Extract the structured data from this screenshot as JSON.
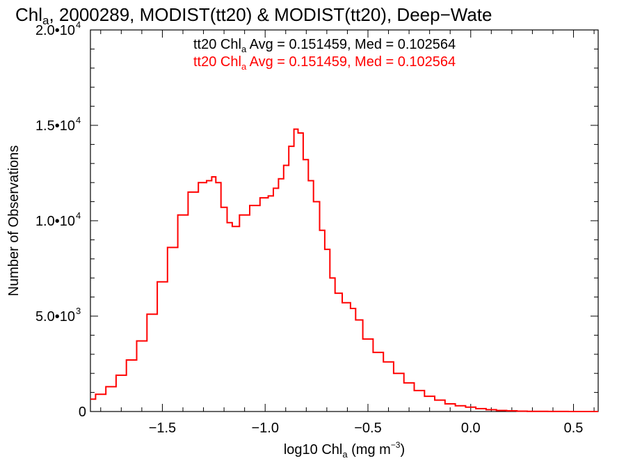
{
  "chart_data": {
    "type": "line",
    "title": {
      "pre": "Chl",
      "sub": "a",
      "post": ", 2000289, MODIST(tt20) & MODIST(tt20), Deep−Wate"
    },
    "xlabel": {
      "pre": "log10 Chl",
      "sub": "a",
      "post": " (mg m",
      "sup": "−3",
      "close": ")"
    },
    "ylabel": "Number of Observations",
    "xlim": [
      -1.85,
      0.62
    ],
    "ylim": [
      0,
      20000
    ],
    "x_ticks": [
      {
        "value": -1.5,
        "label": "−1.5"
      },
      {
        "value": -1.0,
        "label": "−1.0"
      },
      {
        "value": -0.5,
        "label": "−0.5"
      },
      {
        "value": 0.0,
        "label": "0.0"
      },
      {
        "value": 0.5,
        "label": "0.5"
      }
    ],
    "y_ticks": [
      {
        "value": 0,
        "mantissa": "0",
        "exp": ""
      },
      {
        "value": 5000,
        "mantissa": "5.0•10",
        "exp": "3"
      },
      {
        "value": 10000,
        "mantissa": "1.0•10",
        "exp": "4"
      },
      {
        "value": 15000,
        "mantissa": "1.5•10",
        "exp": "4"
      },
      {
        "value": 20000,
        "mantissa": "2.0•10",
        "exp": "4"
      }
    ],
    "x_minor_step": 0.1,
    "y_minor_step": 1000,
    "annotations": [
      {
        "pre": "tt20 Chl",
        "sub": "a",
        "post": " Avg = 0.151459, Med = 0.102564",
        "color": "#000000"
      },
      {
        "pre": "tt20 Chl",
        "sub": "a",
        "post": " Avg = 0.151459, Med = 0.102564",
        "color": "#ff0000"
      }
    ],
    "series": [
      {
        "color": "#ff0000",
        "x": [
          -1.85,
          -1.8,
          -1.75,
          -1.7,
          -1.65,
          -1.6,
          -1.55,
          -1.5,
          -1.45,
          -1.4,
          -1.35,
          -1.3,
          -1.27,
          -1.25,
          -1.23,
          -1.2,
          -1.17,
          -1.15,
          -1.1,
          -1.05,
          -1.0,
          -0.97,
          -0.95,
          -0.92,
          -0.9,
          -0.87,
          -0.85,
          -0.83,
          -0.8,
          -0.78,
          -0.75,
          -0.72,
          -0.7,
          -0.67,
          -0.65,
          -0.6,
          -0.57,
          -0.55,
          -0.5,
          -0.45,
          -0.4,
          -0.35,
          -0.3,
          -0.25,
          -0.2,
          -0.15,
          -0.1,
          -0.05,
          0.0,
          0.05,
          0.1,
          0.15,
          0.2,
          0.25,
          0.3,
          0.35,
          0.4,
          0.45,
          0.5,
          0.55,
          0.62
        ],
        "y": [
          650,
          900,
          1300,
          1900,
          2700,
          3700,
          5100,
          6800,
          8600,
          10300,
          11500,
          12000,
          12100,
          12300,
          12000,
          10700,
          9900,
          9700,
          10300,
          10800,
          11200,
          11300,
          11700,
          12200,
          12900,
          13900,
          14800,
          14600,
          13200,
          12100,
          11000,
          9500,
          8500,
          7000,
          6200,
          5700,
          5400,
          4800,
          3800,
          3100,
          2600,
          2000,
          1500,
          1100,
          800,
          600,
          400,
          300,
          230,
          150,
          95,
          55,
          35,
          20,
          12,
          7,
          4,
          2,
          1,
          0,
          0
        ]
      }
    ]
  }
}
